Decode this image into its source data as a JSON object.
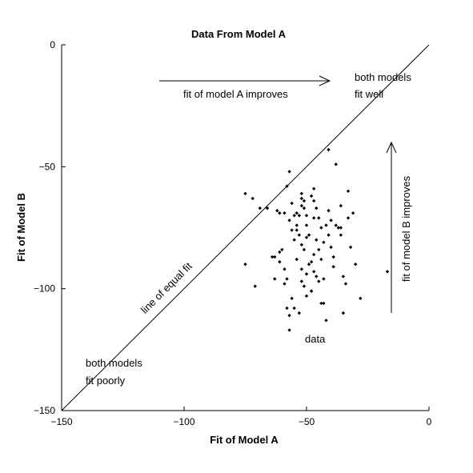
{
  "chart_data": {
    "type": "scatter",
    "title": "Data From Model A",
    "xlabel": "Fit of Model A",
    "ylabel": "Fit of Model B",
    "xlim": [
      -150,
      0
    ],
    "ylim": [
      -150,
      0
    ],
    "x_ticks": [
      -150,
      -100,
      -50,
      0
    ],
    "y_ticks": [
      -150,
      -100,
      -50,
      0
    ],
    "x_tick_labels": [
      "−150",
      "−100",
      "−50",
      "0"
    ],
    "y_tick_labels": [
      "−150",
      "−100",
      "−50",
      "0"
    ],
    "grid": false,
    "reference_line": {
      "from": [
        -150,
        -150
      ],
      "to": [
        0,
        0
      ],
      "label": "line of equal fit"
    },
    "annotations": {
      "top_arrow": "fit of model A improves",
      "right_arrow": "fit of model B improves",
      "both_well_1": "both models",
      "both_well_2": "fit well",
      "both_poorly_1": "both models",
      "both_poorly_2": "fit poorly",
      "data": "data"
    },
    "points": [
      [
        -75,
        -61
      ],
      [
        -72,
        -63
      ],
      [
        -69,
        -67
      ],
      [
        -66,
        -67
      ],
      [
        -75,
        -90
      ],
      [
        -71,
        -99
      ],
      [
        -62,
        -68
      ],
      [
        -61,
        -69
      ],
      [
        -64,
        -87
      ],
      [
        -63,
        -87
      ],
      [
        -61,
        -85
      ],
      [
        -60,
        -84
      ],
      [
        -61,
        -89
      ],
      [
        -59,
        -92
      ],
      [
        -63,
        -96
      ],
      [
        -58,
        -96
      ],
      [
        -59,
        -98
      ],
      [
        -58,
        -108
      ],
      [
        -57,
        -111
      ],
      [
        -57,
        -117
      ],
      [
        -56,
        -104
      ],
      [
        -57,
        -52
      ],
      [
        -58,
        -58
      ],
      [
        -59,
        -69
      ],
      [
        -57,
        -72
      ],
      [
        -56,
        -65
      ],
      [
        -55,
        -70
      ],
      [
        -54,
        -69
      ],
      [
        -56,
        -76
      ],
      [
        -55,
        -80
      ],
      [
        -54,
        -74
      ],
      [
        -54,
        -76
      ],
      [
        -53,
        -70
      ],
      [
        -52,
        -63
      ],
      [
        -52,
        -61
      ],
      [
        -52,
        -66
      ],
      [
        -51,
        -64
      ],
      [
        -51,
        -67
      ],
      [
        -50,
        -70
      ],
      [
        -50,
        -74
      ],
      [
        -51,
        -84
      ],
      [
        -52,
        -82
      ],
      [
        -50,
        -79
      ],
      [
        -49,
        -78
      ],
      [
        -48,
        -62
      ],
      [
        -47,
        -64
      ],
      [
        -47,
        -71
      ],
      [
        -48,
        -89
      ],
      [
        -49,
        -90
      ],
      [
        -53,
        -78
      ],
      [
        -54,
        -88
      ],
      [
        -52,
        -92
      ],
      [
        -50,
        -94
      ],
      [
        -52,
        -97
      ],
      [
        -51,
        -99
      ],
      [
        -50,
        -103
      ],
      [
        -48,
        -101
      ],
      [
        -47,
        -93
      ],
      [
        -46,
        -95
      ],
      [
        -47,
        -59
      ],
      [
        -46,
        -67
      ],
      [
        -45,
        -71
      ],
      [
        -44,
        -75
      ],
      [
        -46,
        -80
      ],
      [
        -45,
        -84
      ],
      [
        -44,
        -88
      ],
      [
        -43,
        -96
      ],
      [
        -42,
        -74
      ],
      [
        -41,
        -78
      ],
      [
        -40,
        -72
      ],
      [
        -41,
        -68
      ],
      [
        -40,
        -83
      ],
      [
        -39,
        -87
      ],
      [
        -39,
        -91
      ],
      [
        -41,
        -43
      ],
      [
        -38,
        -49
      ],
      [
        -37,
        -75
      ],
      [
        -36,
        -66
      ],
      [
        -36,
        -78
      ],
      [
        -35,
        -95
      ],
      [
        -34,
        -98
      ],
      [
        -33,
        -60
      ],
      [
        -33,
        -71
      ],
      [
        -35,
        -110
      ],
      [
        -31,
        -69
      ],
      [
        -32,
        -83
      ],
      [
        -30,
        -90
      ],
      [
        -28,
        -104
      ],
      [
        -17,
        -93
      ],
      [
        -43,
        -106
      ],
      [
        -42,
        -113
      ],
      [
        -55,
        -108
      ],
      [
        -53,
        -110
      ],
      [
        -48,
        -101
      ],
      [
        -45,
        -97
      ],
      [
        -44,
        -106
      ],
      [
        -38,
        -74
      ],
      [
        -36,
        -75
      ],
      [
        -43,
        -81
      ],
      [
        -47,
        -86
      ]
    ]
  }
}
